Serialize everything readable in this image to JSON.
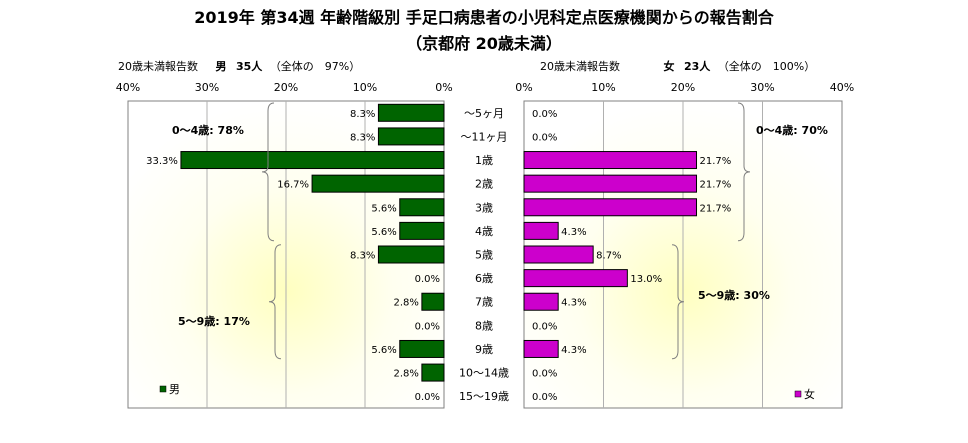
{
  "title_line1": "2019年 第34週 年齢階級別 手足口病患者の小児科定点医療機関からの報告割合",
  "title_line2": "（京都府 20歳未満）",
  "male_header": {
    "label": "20歳未満報告数",
    "sex": "男",
    "count": "35人",
    "share": "（全体の　97%）"
  },
  "female_header": {
    "label": "20歳未満報告数",
    "sex": "女",
    "count": "23人",
    "share": "（全体の　100%）"
  },
  "chart_data": {
    "type": "bar",
    "orientation": "horizontal-butterfly",
    "categories": [
      "～5ヶ月",
      "～11ヶ月",
      "1歳",
      "2歳",
      "3歳",
      "4歳",
      "5歳",
      "6歳",
      "7歳",
      "8歳",
      "9歳",
      "10～14歳",
      "15～19歳"
    ],
    "series": [
      {
        "name": "男",
        "color": "#006400",
        "direction": "left",
        "values": [
          8.3,
          8.3,
          33.3,
          16.7,
          5.6,
          5.6,
          8.3,
          0.0,
          2.8,
          0.0,
          5.6,
          2.8,
          0.0
        ],
        "labels": [
          "8.3%",
          "8.3%",
          "33.3%",
          "16.7%",
          "5.6%",
          "5.6%",
          "8.3%",
          "0.0%",
          "2.8%",
          "0.0%",
          "5.6%",
          "2.8%",
          "0.0%"
        ]
      },
      {
        "name": "女",
        "color": "#cc00cc",
        "direction": "right",
        "values": [
          0.0,
          0.0,
          21.7,
          21.7,
          21.7,
          4.3,
          8.7,
          13.0,
          4.3,
          0.0,
          4.3,
          0.0,
          0.0
        ],
        "labels": [
          "0.0%",
          "0.0%",
          "21.7%",
          "21.7%",
          "21.7%",
          "4.3%",
          "8.7%",
          "13.0%",
          "4.3%",
          "0.0%",
          "4.3%",
          "0.0%",
          "0.0%"
        ]
      }
    ],
    "xlim": [
      0,
      40
    ],
    "male_ticks": [
      "40%",
      "30%",
      "20%",
      "10%",
      "0%"
    ],
    "female_ticks": [
      "0%",
      "10%",
      "20%",
      "30%",
      "40%"
    ],
    "grid": true,
    "legend": "bottom-left / bottom-right",
    "annotations": {
      "male_0_4": "0～4歳: 78%",
      "male_5_9": "5～9歳: 17%",
      "female_0_4": "0～4歳: 70%",
      "female_5_9": "5～9歳: 30%"
    }
  }
}
